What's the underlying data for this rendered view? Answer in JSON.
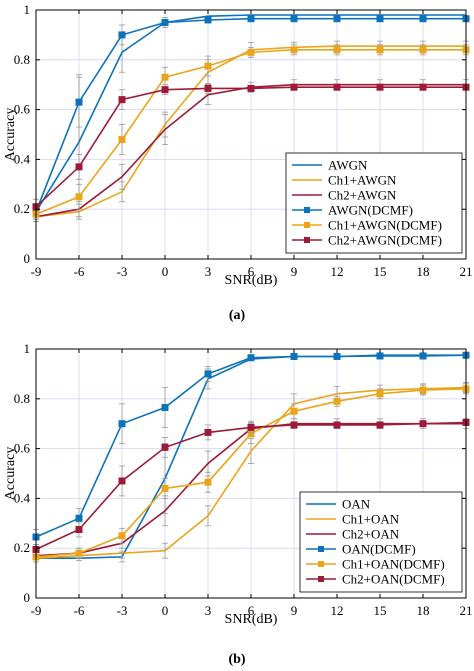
{
  "colors": {
    "awgn_blue": "#0c72bc",
    "ch1_orange": "#eaa51b",
    "ch2_red": "#9c1b38",
    "grid": "#d4d4f4",
    "errorbar": "#9a9a9a"
  },
  "chart_data": [
    {
      "type": "line",
      "panel_label": "(a)",
      "xlabel": "SNR(dB)",
      "ylabel": "Accuracy",
      "x": [
        -9,
        -6,
        -3,
        0,
        3,
        6,
        9,
        12,
        15,
        18,
        21
      ],
      "xlim": [
        -9,
        21
      ],
      "ylim": [
        0,
        1
      ],
      "yticks": [
        0,
        0.2,
        0.4,
        0.6,
        0.8,
        1
      ],
      "grid": true,
      "legend_position": "lower-right",
      "series": [
        {
          "name": "AWGN",
          "color": "#0c72bc",
          "marker": "none",
          "values": [
            0.19,
            0.47,
            0.83,
            0.95,
            0.975,
            0.98,
            0.98,
            0.98,
            0.98,
            0.98,
            0.98
          ],
          "errors": [
            0.03,
            0.27,
            0.08,
            0.02,
            0.01,
            0.01,
            0.01,
            0.01,
            0.01,
            0.01,
            0.01
          ]
        },
        {
          "name": "Ch1+AWGN",
          "color": "#eaa51b",
          "marker": "none",
          "values": [
            0.17,
            0.19,
            0.27,
            0.54,
            0.75,
            0.84,
            0.85,
            0.855,
            0.855,
            0.855,
            0.855
          ],
          "errors": [
            0.02,
            0.03,
            0.04,
            0.05,
            0.05,
            0.03,
            0.02,
            0.02,
            0.02,
            0.02,
            0.02
          ]
        },
        {
          "name": "Ch2+AWGN",
          "color": "#9c1b38",
          "marker": "none",
          "values": [
            0.17,
            0.2,
            0.33,
            0.52,
            0.66,
            0.69,
            0.7,
            0.7,
            0.7,
            0.7,
            0.7
          ],
          "errors": [
            0.02,
            0.03,
            0.05,
            0.06,
            0.04,
            0.02,
            0.02,
            0.02,
            0.02,
            0.02,
            0.02
          ]
        },
        {
          "name": "AWGN(DCMF)",
          "color": "#0c72bc",
          "marker": "square",
          "values": [
            0.19,
            0.63,
            0.9,
            0.95,
            0.96,
            0.965,
            0.965,
            0.965,
            0.965,
            0.965,
            0.965
          ],
          "errors": [
            0.03,
            0.1,
            0.04,
            0.01,
            0.01,
            0.01,
            0.01,
            0.01,
            0.01,
            0.01,
            0.01
          ]
        },
        {
          "name": "Ch1+AWGN(DCMF)",
          "color": "#eaa51b",
          "marker": "square",
          "values": [
            0.18,
            0.25,
            0.48,
            0.73,
            0.775,
            0.83,
            0.84,
            0.84,
            0.84,
            0.84,
            0.84
          ],
          "errors": [
            0.02,
            0.05,
            0.06,
            0.04,
            0.04,
            0.02,
            0.02,
            0.02,
            0.02,
            0.02,
            0.02
          ]
        },
        {
          "name": "Ch2+AWGN(DCMF)",
          "color": "#9c1b38",
          "marker": "square",
          "values": [
            0.21,
            0.37,
            0.64,
            0.68,
            0.685,
            0.685,
            0.69,
            0.69,
            0.69,
            0.69,
            0.69
          ],
          "errors": [
            0.03,
            0.05,
            0.04,
            0.02,
            0.02,
            0.01,
            0.01,
            0.01,
            0.01,
            0.01,
            0.01
          ]
        }
      ]
    },
    {
      "type": "line",
      "panel_label": "(b)",
      "xlabel": "SNR(dB)",
      "ylabel": "Accuracy",
      "x": [
        -9,
        -6,
        -3,
        0,
        3,
        6,
        9,
        12,
        15,
        18,
        21
      ],
      "xlim": [
        -9,
        21
      ],
      "ylim": [
        0,
        1
      ],
      "yticks": [
        0,
        0.2,
        0.4,
        0.6,
        0.8,
        1
      ],
      "grid": true,
      "legend_position": "lower-right",
      "series": [
        {
          "name": "OAN",
          "color": "#0c72bc",
          "marker": "none",
          "values": [
            0.16,
            0.16,
            0.165,
            0.48,
            0.88,
            0.96,
            0.97,
            0.97,
            0.975,
            0.975,
            0.975
          ],
          "errors": [
            0.01,
            0.01,
            0.02,
            0.14,
            0.04,
            0.01,
            0.01,
            0.01,
            0.01,
            0.01,
            0.01
          ]
        },
        {
          "name": "Ch1+OAN",
          "color": "#eaa51b",
          "marker": "none",
          "values": [
            0.16,
            0.17,
            0.18,
            0.19,
            0.33,
            0.59,
            0.78,
            0.82,
            0.835,
            0.84,
            0.845
          ],
          "errors": [
            0.01,
            0.02,
            0.02,
            0.03,
            0.04,
            0.05,
            0.04,
            0.03,
            0.02,
            0.02,
            0.02
          ]
        },
        {
          "name": "Ch2+OAN",
          "color": "#9c1b38",
          "marker": "none",
          "values": [
            0.17,
            0.18,
            0.22,
            0.35,
            0.54,
            0.68,
            0.7,
            0.7,
            0.7,
            0.7,
            0.7
          ],
          "errors": [
            0.01,
            0.02,
            0.04,
            0.06,
            0.05,
            0.03,
            0.02,
            0.02,
            0.02,
            0.02,
            0.02
          ]
        },
        {
          "name": "OAN(DCMF)",
          "color": "#0c72bc",
          "marker": "square",
          "values": [
            0.245,
            0.32,
            0.7,
            0.765,
            0.9,
            0.965,
            0.97,
            0.97,
            0.972,
            0.972,
            0.975
          ],
          "errors": [
            0.03,
            0.04,
            0.08,
            0.08,
            0.03,
            0.01,
            0.01,
            0.01,
            0.01,
            0.01,
            0.01
          ]
        },
        {
          "name": "Ch1+OAN(DCMF)",
          "color": "#eaa51b",
          "marker": "square",
          "values": [
            0.165,
            0.18,
            0.25,
            0.44,
            0.465,
            0.66,
            0.75,
            0.79,
            0.82,
            0.835,
            0.84
          ],
          "errors": [
            0.02,
            0.02,
            0.03,
            0.04,
            0.04,
            0.04,
            0.03,
            0.02,
            0.02,
            0.02,
            0.02
          ]
        },
        {
          "name": "Ch2+OAN(DCMF)",
          "color": "#9c1b38",
          "marker": "square",
          "values": [
            0.195,
            0.275,
            0.47,
            0.605,
            0.665,
            0.685,
            0.695,
            0.695,
            0.695,
            0.7,
            0.705
          ],
          "errors": [
            0.02,
            0.03,
            0.06,
            0.04,
            0.03,
            0.02,
            0.01,
            0.01,
            0.01,
            0.01,
            0.01
          ]
        }
      ]
    }
  ]
}
